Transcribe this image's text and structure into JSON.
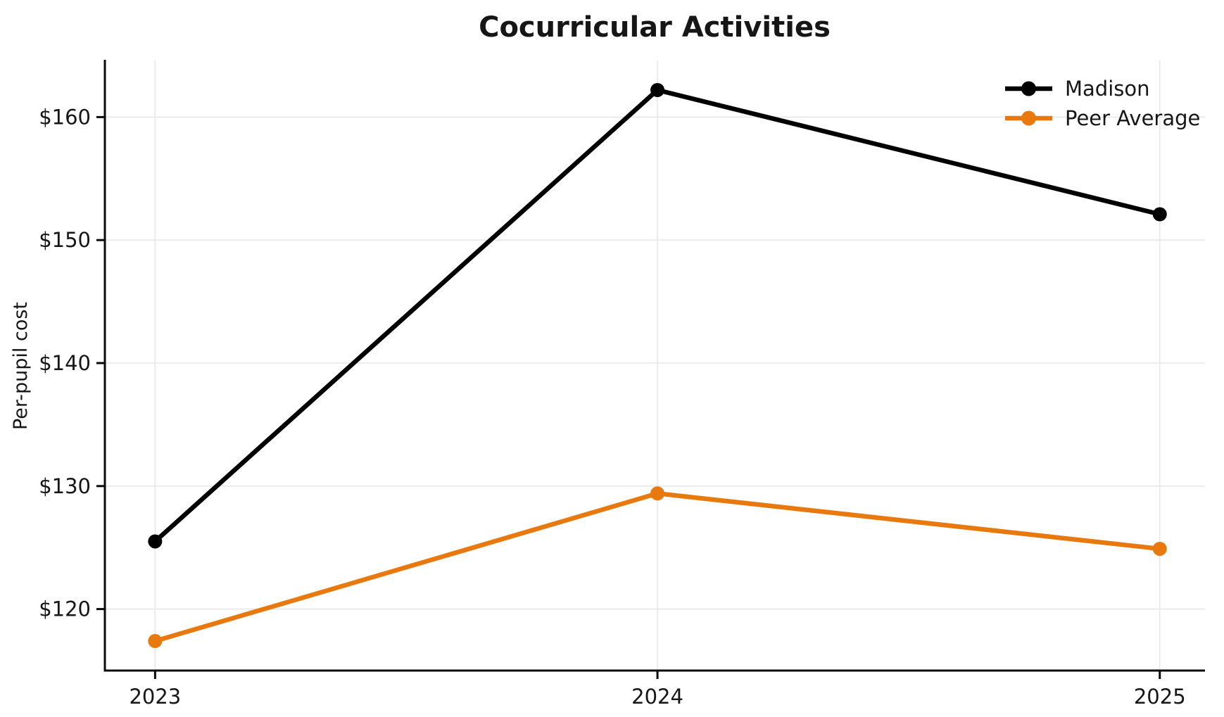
{
  "chart_data": {
    "type": "line",
    "title": "Cocurricular Activities",
    "xlabel": "",
    "ylabel": "Per-pupil cost",
    "x": [
      2023,
      2024,
      2025
    ],
    "xtick_labels": [
      "2023",
      "2024",
      "2025"
    ],
    "yticks": [
      120,
      130,
      140,
      150,
      160
    ],
    "ytick_labels": [
      "$120",
      "$130",
      "$140",
      "$150",
      "$160"
    ],
    "xlim": [
      2022.9,
      2025.09
    ],
    "ylim": [
      115.0,
      164.6
    ],
    "grid": true,
    "series": [
      {
        "name": "Madison",
        "values": [
          125.5,
          162.2,
          152.1
        ],
        "color": "#000000"
      },
      {
        "name": "Peer Average",
        "values": [
          117.4,
          129.4,
          124.9
        ],
        "color": "#e8790e"
      }
    ],
    "legend": {
      "position": "upper right",
      "entries": [
        "Madison",
        "Peer Average"
      ]
    },
    "style": {
      "background": "#ffffff",
      "grid_color": "#e7e7e7",
      "axis_color": "#0b0b0b",
      "text_color": "#161616"
    }
  }
}
